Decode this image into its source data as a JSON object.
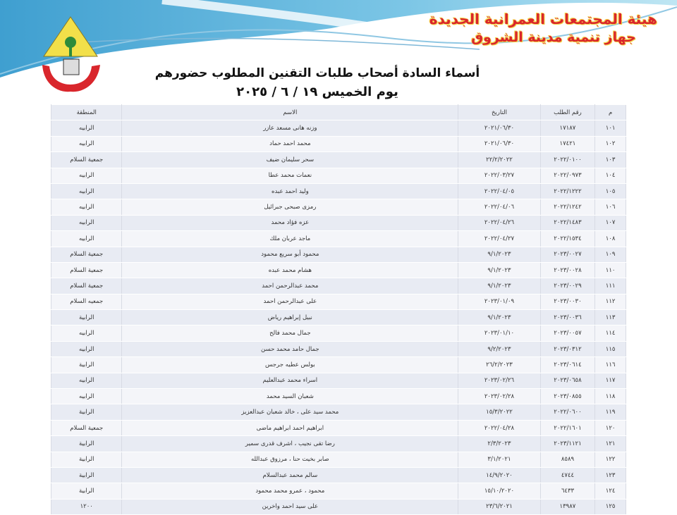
{
  "header": {
    "org_line1": "هيئة المجتمعات العمرانية الجديدة",
    "org_line2": "جهاز تنمية مدينة الشروق",
    "title": "أسماء السادة أصحاب طلبات التقنين المطلوب حضورهم",
    "subtitle": "يوم الخميس ١٩ / ٦ / ٢٠٢٥",
    "logo_icon": "city-authority-logo"
  },
  "table": {
    "columns": [
      "م",
      "رقم الطلب",
      "التاريخ",
      "الاسم",
      "المنطقة"
    ],
    "rows": [
      [
        "١٠١",
        "١٧١٨٧",
        "٢٠٢١/٠٦/٣٠",
        "وزنه هانى مسعد عازر",
        "الرابيه"
      ],
      [
        "١٠٢",
        "١٧٤٢١",
        "٢٠٢١/٠٦/٣٠",
        "محمد احمد حماد",
        "الرابيه"
      ],
      [
        "١٠٣",
        "٢٠٢٢/٠١٠٠",
        "٢٢/٢/٢٠٢٢",
        "سحر سليمان ضيف",
        "جمعية السلام"
      ],
      [
        "١٠٤",
        "٢٠٢٢/٠٩٧٣",
        "٢٠٢٢/٠٣/٢٧",
        "نعمات محمد عطا",
        "الرابيه"
      ],
      [
        "١٠٥",
        "٢٠٢٢/١٢٢٢",
        "٢٠٢٢/٠٤/٠٥",
        "وليد احمد عبده",
        "الرابيه"
      ],
      [
        "١٠٦",
        "٢٠٢٢/١٢٤٢",
        "٢٠٢٢/٠٤/٠٦",
        "رمزى صبحى جبرائيل",
        "الرابيه"
      ],
      [
        "١٠٧",
        "٢٠٢٢/١٤٨٣",
        "٢٠٢٢/٠٤/٢٦",
        "عزه فؤاد محمد",
        "الرابيه"
      ],
      [
        "١٠٨",
        "٢٠٢٢/١٥٣٤",
        "٢٠٢٢/٠٤/٢٧",
        "ماجد عربان ملك",
        "الرابيه"
      ],
      [
        "١٠٩",
        "٢٠٢٣/٠٠٢٧",
        "٩/١/٢٠٢٣",
        "محمود أبو سريع محمود",
        "جمعية السلام"
      ],
      [
        "١١٠",
        "٢٠٢٣/٠٠٢٨",
        "٩/١/٢٠٢٣",
        "هشام محمد عبده",
        "جمعية السلام"
      ],
      [
        "١١١",
        "٢٠٢٣/٠٠٢٩",
        "٩/١/٢٠٢٣",
        "محمد عبدالرحمن احمد",
        "جمعية السلام"
      ],
      [
        "١١٢",
        "٢٠٢٣/٠٠٣٠",
        "٢٠٢٣/٠١/٠٩",
        "على عبدالرحمن احمد",
        "جمعيه السلام"
      ],
      [
        "١١٣",
        "٢٠٢٣/٠٠٣٦",
        "٩/١/٢٠٢٣",
        "نبيل إبراهيم رياض",
        "الرابية"
      ],
      [
        "١١٤",
        "٢٠٢٣/٠٠٥٧",
        "٢٠٢٣/٠١/١٠",
        "جمال محمد فالح",
        "الرابيه"
      ],
      [
        "١١٥",
        "٢٠٢٣/٠٣١٢",
        "٩/٢/٢٠٢٣",
        "جمال حامد محمد حسن",
        "الرابيه"
      ],
      [
        "١١٦",
        "٢٠٢٣/٠٦١٤",
        "٢٦/٢/٢٠٢٣",
        "بولس عطيه جرجس",
        "الرابية"
      ],
      [
        "١١٧",
        "٢٠٢٣/٠٦٥٨",
        "٢٠٢٣/٠٢/٢٦",
        "اسراء محمد عبدالعليم",
        "الرابيه"
      ],
      [
        "١١٨",
        "٢٠٢٣/٠٨٥٥",
        "٢٠٢٣/٠٢/٢٨",
        "شعبان السيد محمد",
        "الرابيه"
      ],
      [
        "١١٩",
        "٢٠٢٢/٠٦٠٠",
        "١٥/٣/٢٠٢٢",
        "محمد سيد على ، خالد شعبان عبدالعزيز",
        "الرابية"
      ],
      [
        "١٢٠",
        "٢٠٢٢/١٦٠١",
        "٢٠٢٢/٠٤/٢٨",
        "ابراهيم احمد ابراهيم ماضى",
        "جمعية السلام"
      ],
      [
        "١٢١",
        "٢٠٢٣/١١٢١",
        "٢/٣/٢٠٢٣",
        "رضا تقى نجيب ، اشرف قدرى سمير",
        "الرابية"
      ],
      [
        "١٢٢",
        "٨٥٨٩",
        "٣/١/٢٠٢١",
        "صابر بخيت حنا ، مرزوق عبدالله",
        "الرابية"
      ],
      [
        "١٢٣",
        "٤٧٤٤",
        "١٤/٩/٢٠٢٠",
        "سالم محمد عبدالسلام",
        "الرابية"
      ],
      [
        "١٢٤",
        "٦٤٣٣",
        "١٥/١٠/٢٠٢٠",
        "محمود ، عمرو محمد محمود",
        "الرابية"
      ],
      [
        "١٢٥",
        "١٣٩٨٧",
        "٢٣/٦/٢٠٢١",
        "على سيد احمد واخرين",
        "١٢٠٠"
      ]
    ]
  },
  "colors": {
    "org_text": "#d9262c",
    "org_outline": "#f0d040",
    "banner_blue": "#5fb4dc",
    "row_alt": "#e8ebf3"
  }
}
